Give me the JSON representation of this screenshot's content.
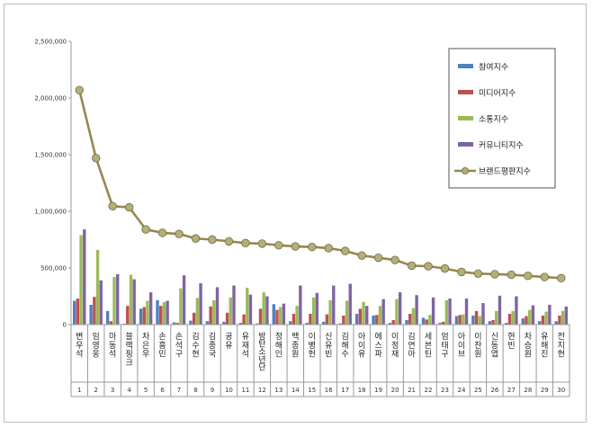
{
  "chart_data": {
    "type": "bar",
    "ylim": [
      0,
      2500000
    ],
    "y_ticks": [
      "0",
      "500,000",
      "1,000,000",
      "1,500,000",
      "2,000,000",
      "2,500,000"
    ],
    "y_tick_values": [
      0,
      500000,
      1000000,
      1500000,
      2000000,
      2500000
    ],
    "grid": false,
    "legend_position": "top-right",
    "categories": [
      "변우석",
      "임영웅",
      "마동석",
      "블랙핑크",
      "차은우",
      "손흥민",
      "손석구",
      "김수현",
      "김종국",
      "공유",
      "유재석",
      "방탄소년단",
      "정해인",
      "백종원",
      "이병헌",
      "신유빈",
      "김해수",
      "아이유",
      "에스파",
      "이정재",
      "김연아",
      "세븐틴",
      "엄태구",
      "아이브",
      "이찬원",
      "신동엽",
      "현빈",
      "차승원",
      "유해진",
      "전지현"
    ],
    "ranks": [
      "1",
      "2",
      "3",
      "4",
      "5",
      "6",
      "7",
      "8",
      "9",
      "10",
      "11",
      "12",
      "13",
      "14",
      "15",
      "16",
      "17",
      "18",
      "19",
      "20",
      "21",
      "22",
      "23",
      "24",
      "25",
      "26",
      "27",
      "28",
      "29",
      "30"
    ],
    "series": [
      {
        "name": "참여지수",
        "color": "#4f81bd",
        "kind": "bar",
        "values": [
          210000,
          175000,
          120000,
          8000,
          140000,
          215000,
          20000,
          35000,
          30000,
          25000,
          15000,
          10000,
          180000,
          30000,
          15000,
          25000,
          10000,
          95000,
          80000,
          15000,
          40000,
          60000,
          15000,
          75000,
          80000,
          30000,
          15000,
          55000,
          30000,
          30000
        ]
      },
      {
        "name": "미디어지수",
        "color": "#c0504d",
        "kind": "bar",
        "values": [
          230000,
          245000,
          30000,
          165000,
          155000,
          165000,
          15000,
          105000,
          160000,
          105000,
          90000,
          140000,
          130000,
          95000,
          95000,
          90000,
          80000,
          140000,
          85000,
          40000,
          95000,
          45000,
          25000,
          85000,
          120000,
          40000,
          95000,
          75000,
          80000,
          80000
        ]
      },
      {
        "name": "소통지수",
        "color": "#9bbb59",
        "kind": "bar",
        "values": [
          790000,
          660000,
          420000,
          440000,
          210000,
          200000,
          320000,
          235000,
          215000,
          240000,
          325000,
          285000,
          155000,
          165000,
          240000,
          215000,
          210000,
          200000,
          165000,
          225000,
          145000,
          85000,
          215000,
          90000,
          75000,
          120000,
          120000,
          130000,
          115000,
          120000
        ]
      },
      {
        "name": "커뮤니티지수",
        "color": "#8064a2",
        "kind": "bar",
        "values": [
          840000,
          390000,
          445000,
          400000,
          285000,
          210000,
          435000,
          365000,
          330000,
          345000,
          265000,
          250000,
          185000,
          345000,
          280000,
          345000,
          360000,
          165000,
          225000,
          285000,
          260000,
          240000,
          230000,
          230000,
          190000,
          255000,
          250000,
          170000,
          175000,
          160000
        ]
      },
      {
        "name": "브랜드평판지수",
        "color": "#938953",
        "kind": "line",
        "values": [
          2070000,
          1470000,
          1045000,
          1035000,
          840000,
          810000,
          800000,
          760000,
          750000,
          735000,
          720000,
          715000,
          700000,
          690000,
          685000,
          675000,
          650000,
          610000,
          590000,
          570000,
          520000,
          515000,
          495000,
          465000,
          450000,
          445000,
          440000,
          430000,
          420000,
          410000
        ]
      }
    ]
  }
}
